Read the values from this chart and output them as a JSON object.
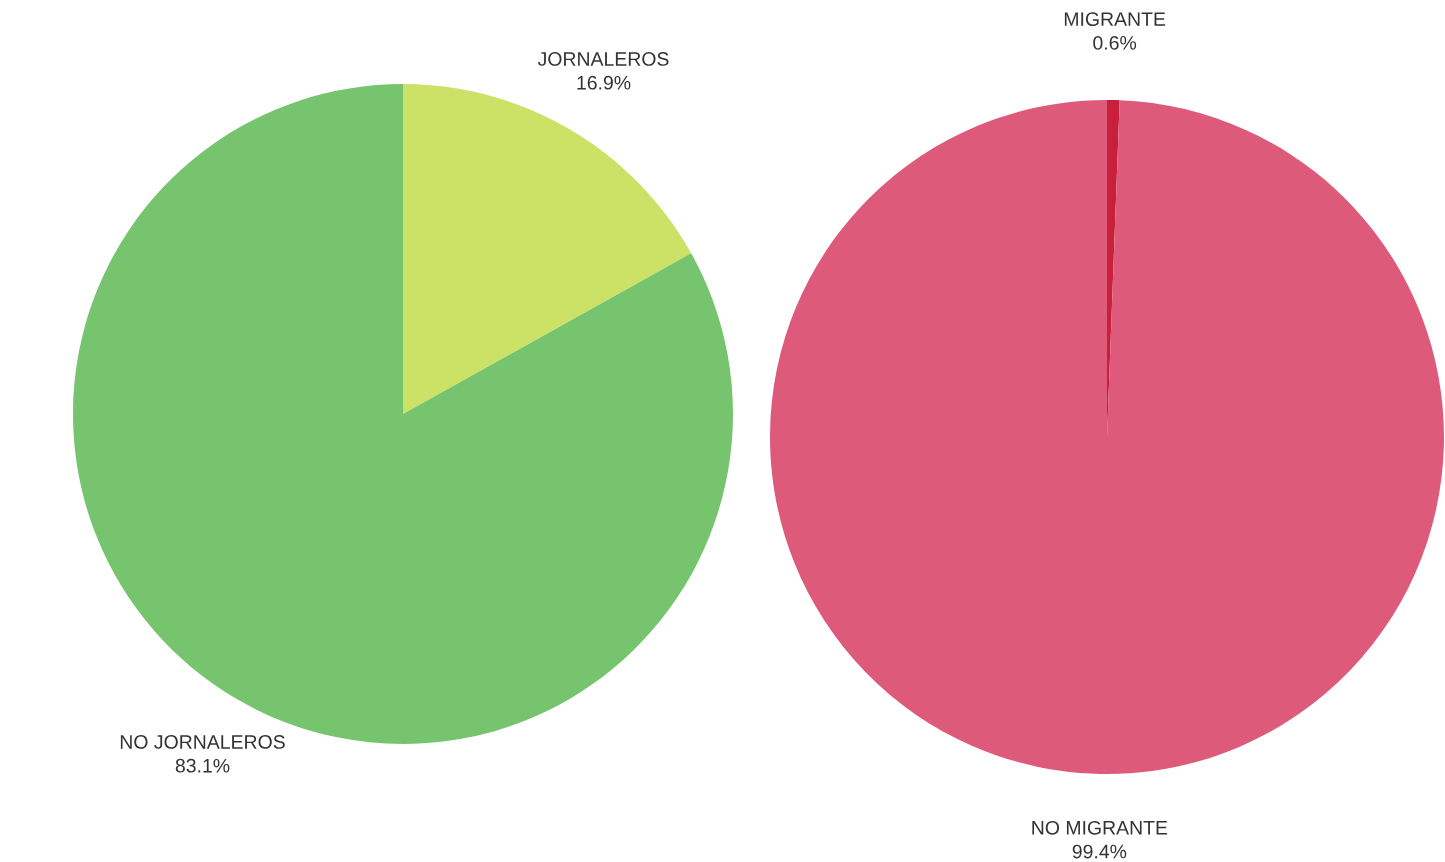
{
  "chart_data": [
    {
      "type": "pie",
      "categories": [
        "JORNALEROS",
        "NO JORNALEROS"
      ],
      "values": [
        16.9,
        83.1
      ],
      "colors": [
        "#cce266",
        "#77c46f"
      ],
      "value_labels": [
        "16.9%",
        "83.1%"
      ]
    },
    {
      "type": "pie",
      "categories": [
        "MIGRANTE",
        "NO MIGRANTE"
      ],
      "values": [
        0.6,
        99.4
      ],
      "colors": [
        "#c8203a",
        "#dd5a7a"
      ],
      "value_labels": [
        "0.6%",
        "99.4%"
      ]
    }
  ]
}
